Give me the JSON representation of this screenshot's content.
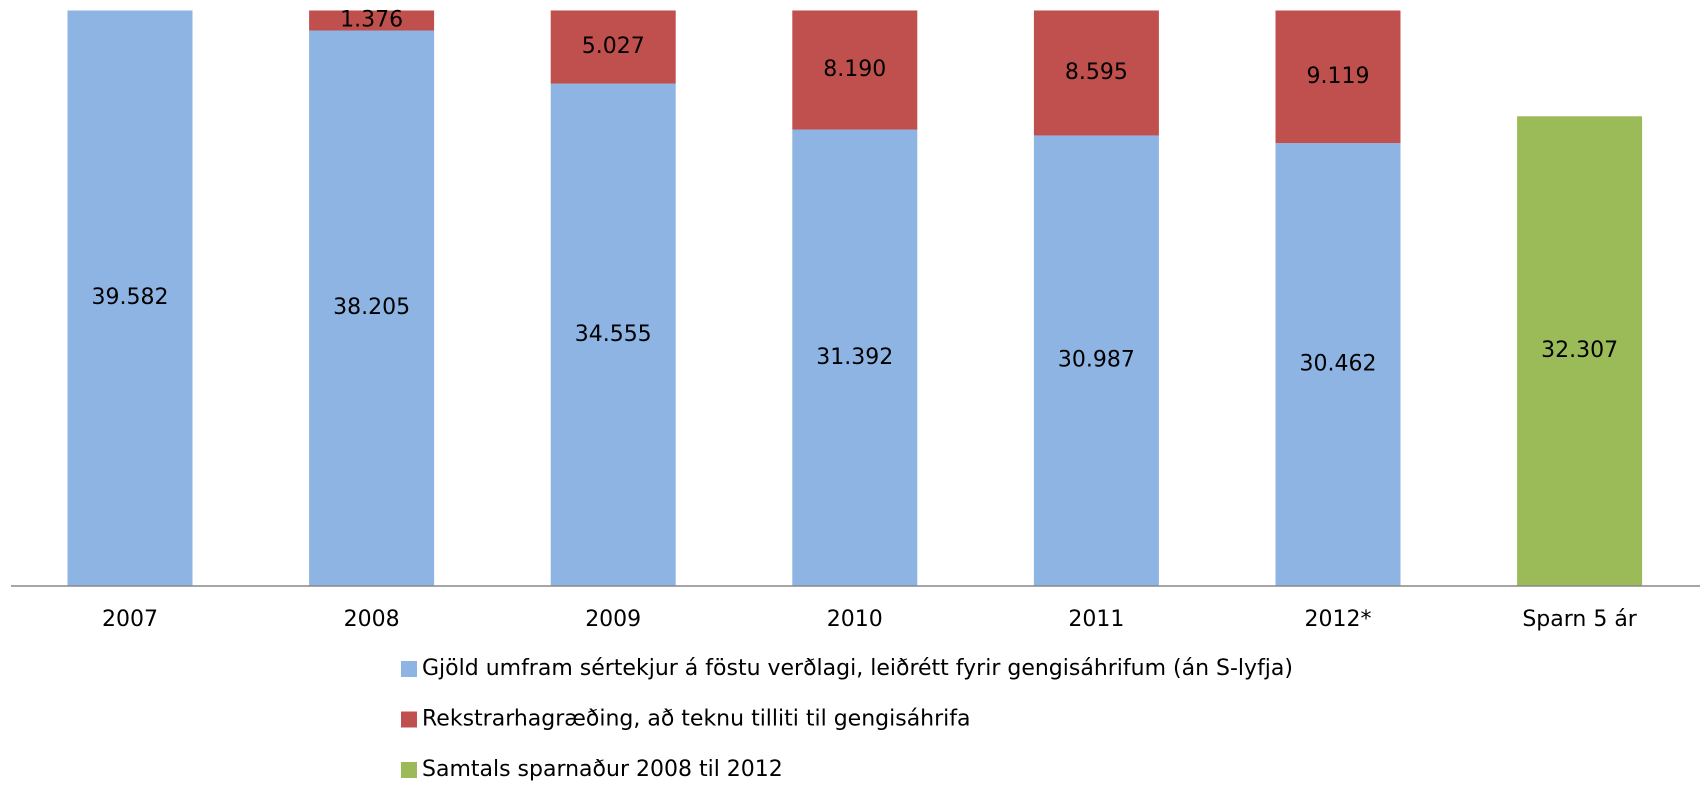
{
  "chart_data": {
    "type": "stacked_bar",
    "categories": [
      "2007",
      "2008",
      "2009",
      "2010",
      "2011",
      "2012*",
      "Sparn 5 ár"
    ],
    "series": [
      {
        "name": "Gjöld umfram sértekjur á föstu verðlagi, leiðrétt fyrir gengisáhrifum (án S-lyfja)",
        "color": "#8eb4e3",
        "values": [
          39582,
          38205,
          34555,
          31392,
          30987,
          30462,
          null
        ],
        "value_labels": [
          "39.582",
          "38.205",
          "34.555",
          "31.392",
          "30.987",
          "30.462",
          null
        ]
      },
      {
        "name": "Rekstrarhagræðing, að teknu tilliti til gengisáhrifa",
        "color": "#c0504d",
        "values": [
          null,
          1376,
          5027,
          8190,
          8595,
          9119,
          null
        ],
        "value_labels": [
          null,
          "1.376",
          "5.027",
          "8.190",
          "8.595",
          "9.119",
          null
        ]
      },
      {
        "name": "Samtals sparnaður 2008 til 2012",
        "color": "#9bbb59",
        "values": [
          null,
          null,
          null,
          null,
          null,
          null,
          32307
        ],
        "value_labels": [
          null,
          null,
          null,
          null,
          null,
          null,
          "32.307"
        ]
      }
    ],
    "ylim": [
      0,
      40000
    ]
  }
}
